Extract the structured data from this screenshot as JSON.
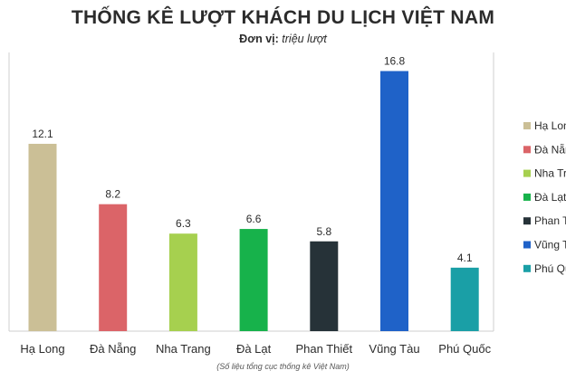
{
  "header": {
    "title": "THỐNG KÊ LƯỢT KHÁCH DU LỊCH VIỆT NAM",
    "unit_label": "Đơn vị:",
    "unit_value": "triệu lượt"
  },
  "footer": {
    "source": "(Số liệu tổng cục thống kê Việt Nam)"
  },
  "chart_data": {
    "type": "bar",
    "categories": [
      "Hạ Long",
      "Đà Nẵng",
      "Nha Trang",
      "Đà Lạt",
      "Phan Thiết",
      "Vũng Tàu",
      "Phú Quốc"
    ],
    "values": [
      12.1,
      8.2,
      6.3,
      6.6,
      5.8,
      16.8,
      4.1
    ],
    "data_labels": [
      "12.1",
      "8.2",
      "6.3",
      "6.6",
      "5.8",
      "16.8",
      "4.1"
    ],
    "colors": [
      "#cbbf96",
      "#db6468",
      "#a6d04f",
      "#17b24b",
      "#263238",
      "#1f62c8",
      "#1a9fa6"
    ],
    "legend": {
      "placement": "right",
      "entries": [
        "Hạ Long",
        "Đà Nẵng",
        "Nha Trang",
        "Đà Lạt",
        "Phan Thiết",
        "Vũng Tàu",
        "Phú Quốc"
      ]
    },
    "ylim": [
      0,
      18
    ],
    "grid": false,
    "xlabel": "",
    "ylabel": ""
  }
}
